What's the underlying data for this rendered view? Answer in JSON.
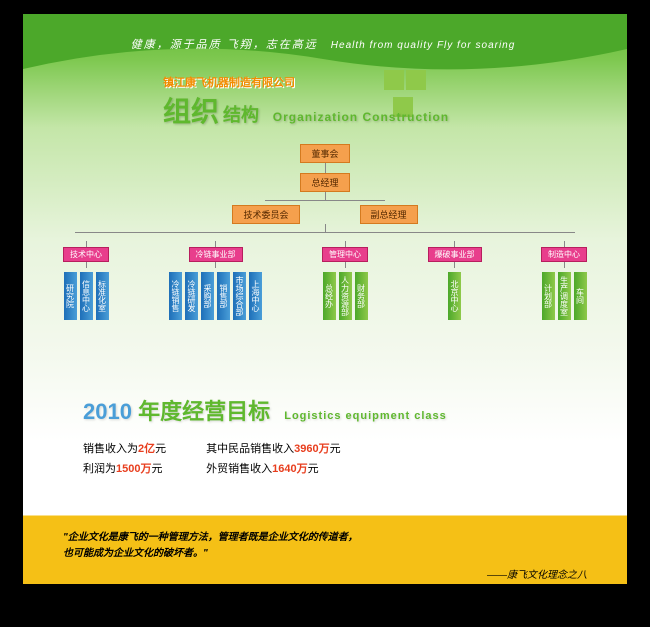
{
  "slogan_cn": "健康，源于品质  飞翔，志在高远",
  "slogan_en": "Health from quality  Fly for soaring",
  "company": "镇江康飞机器制造有限公司",
  "title_main": "组织",
  "title_sub": "结构",
  "title_en": "Organization  Construction",
  "colors": {
    "orange_bg": "#f5a04d",
    "orange_border": "#d47a1f",
    "pink_bg": "#e83e8c",
    "pink_border": "#b81e5e",
    "blue_a": "#1e6fb8",
    "blue_b": "#4a9ed8",
    "green_a": "#4ca82a",
    "green_b": "#8fc94a",
    "accent": "#e83e1e",
    "yellow": "#f5c016"
  },
  "tree": {
    "root": "董事会",
    "l1": "总经理",
    "l2": [
      "技术委员会",
      "副总经理"
    ],
    "groups": [
      {
        "label": "技术中心",
        "color": "blue",
        "leaves": [
          "研究院",
          "信息中心",
          "标准化室"
        ]
      },
      {
        "label": "冷链事业部",
        "color": "blue",
        "leaves": [
          "冷链销售",
          "冷链研发",
          "采购部",
          "销售部",
          "市场综合部",
          "上海中心"
        ]
      },
      {
        "label": "管理中心",
        "color": "green",
        "leaves": [
          "总经办",
          "人力资源部",
          "财务部"
        ]
      },
      {
        "label": "爆破事业部",
        "color": "green",
        "leaves": [
          "北京中心"
        ]
      },
      {
        "label": "制造中心",
        "color": "green",
        "leaves": [
          "计划部",
          "生产调度室",
          "车间"
        ]
      }
    ]
  },
  "goals": {
    "year": "2010",
    "title": "年度经营目标",
    "title_en": "Logistics equipment class",
    "left": [
      {
        "pre": "销售收入为",
        "val": "2亿",
        "suf": "元"
      },
      {
        "pre": "利润为",
        "val": "1500万",
        "suf": "元"
      }
    ],
    "right": [
      {
        "pre": "其中民品销售收入",
        "val": "3960万",
        "suf": "元"
      },
      {
        "pre": "外贸销售收入",
        "val": "1640万",
        "suf": "元"
      }
    ]
  },
  "quote_l1": "\"企业文化是康飞的一种管理方法，管理者既是企业文化的传道者，",
  "quote_l2": "也可能成为企业文化的破坏者。\"",
  "quote_src": "——康飞文化理念之八"
}
